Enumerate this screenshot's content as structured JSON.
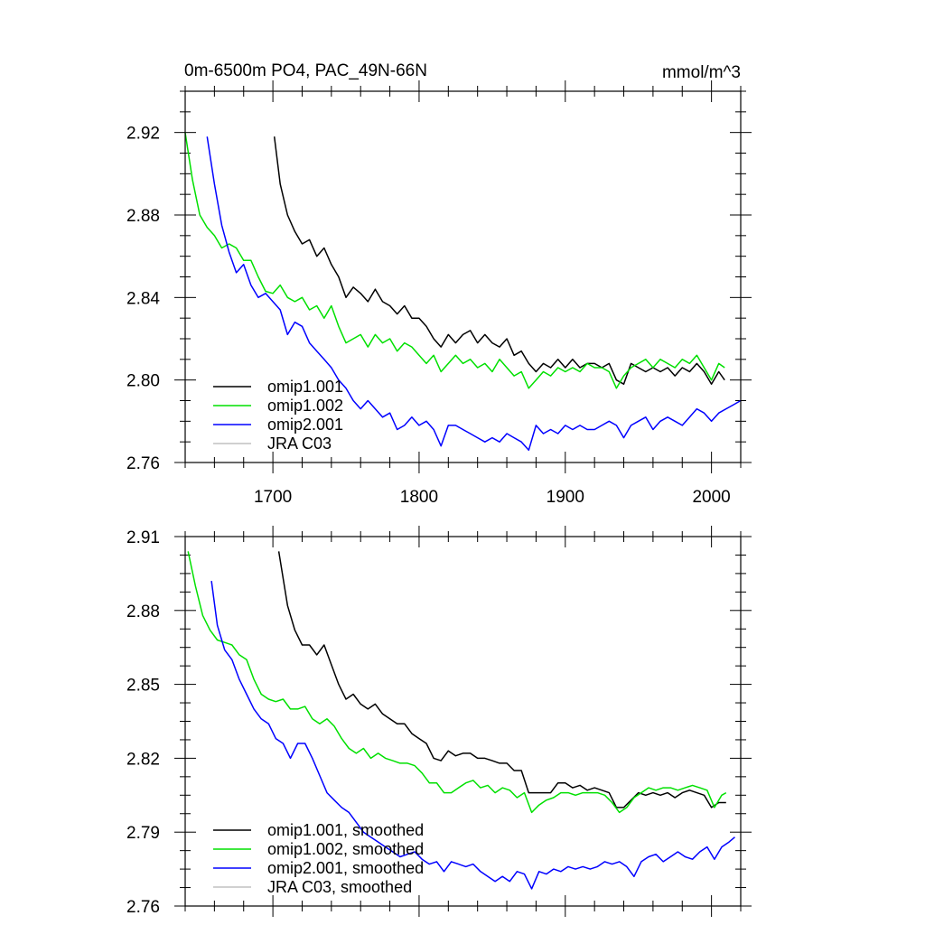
{
  "chart_data": [
    {
      "type": "line",
      "title": "0m-6500m PO4, PAC_49N-66N",
      "units": "mmol/m^3",
      "xlim": [
        1640,
        2020
      ],
      "ylim": [
        2.76,
        2.94
      ],
      "x_ticks": [
        1700,
        1800,
        1900,
        2000
      ],
      "y_ticks": [
        2.76,
        2.8,
        2.84,
        2.88,
        2.92
      ],
      "y_tick_labels": [
        "2.76",
        "2.80",
        "2.84",
        "2.88",
        "2.92"
      ],
      "legend_position": "bottom-left",
      "series": [
        {
          "name": "omip1.001",
          "color": "#000000",
          "x": [
            1701,
            1705,
            1710,
            1715,
            1720,
            1725,
            1730,
            1735,
            1740,
            1745,
            1750,
            1755,
            1760,
            1765,
            1770,
            1775,
            1780,
            1785,
            1790,
            1795,
            1800,
            1805,
            1810,
            1815,
            1820,
            1825,
            1830,
            1835,
            1840,
            1845,
            1850,
            1855,
            1860,
            1865,
            1870,
            1875,
            1880,
            1885,
            1890,
            1895,
            1900,
            1905,
            1910,
            1915,
            1920,
            1925,
            1930,
            1935,
            1940,
            1945,
            1950,
            1955,
            1960,
            1965,
            1970,
            1975,
            1980,
            1985,
            1990,
            1995,
            2000,
            2005,
            2009
          ],
          "y": [
            2.918,
            2.895,
            2.88,
            2.872,
            2.866,
            2.868,
            2.86,
            2.864,
            2.856,
            2.85,
            2.84,
            2.845,
            2.842,
            2.838,
            2.844,
            2.838,
            2.836,
            2.832,
            2.836,
            2.83,
            2.83,
            2.826,
            2.82,
            2.816,
            2.822,
            2.818,
            2.822,
            2.824,
            2.818,
            2.822,
            2.818,
            2.816,
            2.82,
            2.812,
            2.814,
            2.808,
            2.804,
            2.808,
            2.806,
            2.81,
            2.806,
            2.81,
            2.806,
            2.808,
            2.808,
            2.806,
            2.808,
            2.8,
            2.798,
            2.808,
            2.806,
            2.804,
            2.806,
            2.804,
            2.806,
            2.802,
            2.806,
            2.804,
            2.808,
            2.804,
            2.798,
            2.804,
            2.8
          ]
        },
        {
          "name": "omip1.002",
          "color": "#00e000",
          "x": [
            1640,
            1645,
            1650,
            1655,
            1660,
            1665,
            1670,
            1675,
            1680,
            1685,
            1690,
            1695,
            1700,
            1705,
            1710,
            1715,
            1720,
            1725,
            1730,
            1735,
            1740,
            1745,
            1750,
            1755,
            1760,
            1765,
            1770,
            1775,
            1780,
            1785,
            1790,
            1795,
            1800,
            1805,
            1810,
            1815,
            1820,
            1825,
            1830,
            1835,
            1840,
            1845,
            1850,
            1855,
            1860,
            1865,
            1870,
            1875,
            1880,
            1885,
            1890,
            1895,
            1900,
            1905,
            1910,
            1915,
            1920,
            1925,
            1930,
            1935,
            1940,
            1945,
            1950,
            1955,
            1960,
            1965,
            1970,
            1975,
            1980,
            1985,
            1990,
            1995,
            2000,
            2005,
            2009
          ],
          "y": [
            2.92,
            2.897,
            2.88,
            2.874,
            2.87,
            2.864,
            2.866,
            2.864,
            2.858,
            2.858,
            2.85,
            2.843,
            2.842,
            2.846,
            2.84,
            2.838,
            2.84,
            2.834,
            2.836,
            2.83,
            2.836,
            2.826,
            2.818,
            2.82,
            2.822,
            2.816,
            2.822,
            2.818,
            2.82,
            2.814,
            2.818,
            2.816,
            2.812,
            2.808,
            2.812,
            2.804,
            2.808,
            2.812,
            2.808,
            2.81,
            2.806,
            2.808,
            2.804,
            2.81,
            2.806,
            2.802,
            2.804,
            2.796,
            2.8,
            2.804,
            2.802,
            2.806,
            2.804,
            2.806,
            2.804,
            2.808,
            2.806,
            2.806,
            2.804,
            2.796,
            2.802,
            2.806,
            2.808,
            2.81,
            2.806,
            2.81,
            2.808,
            2.806,
            2.81,
            2.808,
            2.812,
            2.806,
            2.8,
            2.808,
            2.806
          ]
        },
        {
          "name": "omip2.001",
          "color": "#0000ff",
          "x": [
            1655,
            1660,
            1665,
            1670,
            1675,
            1680,
            1685,
            1690,
            1695,
            1700,
            1705,
            1710,
            1715,
            1720,
            1725,
            1730,
            1735,
            1740,
            1745,
            1750,
            1755,
            1760,
            1765,
            1770,
            1775,
            1780,
            1785,
            1790,
            1795,
            1800,
            1805,
            1810,
            1815,
            1820,
            1825,
            1830,
            1835,
            1840,
            1845,
            1850,
            1855,
            1860,
            1865,
            1870,
            1875,
            1880,
            1885,
            1890,
            1895,
            1900,
            1905,
            1910,
            1915,
            1920,
            1925,
            1930,
            1935,
            1940,
            1945,
            1950,
            1955,
            1960,
            1965,
            1970,
            1975,
            1980,
            1985,
            1990,
            1995,
            2000,
            2005,
            2010,
            2015,
            2020
          ],
          "y": [
            2.918,
            2.895,
            2.875,
            2.862,
            2.852,
            2.856,
            2.846,
            2.84,
            2.842,
            2.838,
            2.834,
            2.822,
            2.828,
            2.826,
            2.818,
            2.814,
            2.81,
            2.806,
            2.8,
            2.796,
            2.79,
            2.786,
            2.79,
            2.786,
            2.782,
            2.784,
            2.776,
            2.778,
            2.782,
            2.778,
            2.78,
            2.776,
            2.768,
            2.778,
            2.778,
            2.776,
            2.774,
            2.772,
            2.77,
            2.772,
            2.77,
            2.774,
            2.772,
            2.77,
            2.766,
            2.778,
            2.774,
            2.776,
            2.774,
            2.778,
            2.776,
            2.778,
            2.776,
            2.776,
            2.778,
            2.78,
            2.778,
            2.772,
            2.778,
            2.78,
            2.782,
            2.776,
            2.78,
            2.782,
            2.78,
            2.778,
            2.782,
            2.786,
            2.784,
            2.78,
            2.784,
            2.786,
            2.788,
            2.79
          ]
        },
        {
          "name": "JRA C03",
          "color": "#c0c0c0",
          "x": [],
          "y": []
        }
      ]
    },
    {
      "type": "line",
      "title": "",
      "xlim": [
        1640,
        2020
      ],
      "ylim": [
        2.76,
        2.91
      ],
      "x_ticks": [
        1700,
        1800,
        1900,
        2000
      ],
      "y_ticks": [
        2.76,
        2.79,
        2.82,
        2.85,
        2.88,
        2.91
      ],
      "y_tick_labels": [
        "2.76",
        "2.79",
        "2.82",
        "2.85",
        "2.88",
        "2.91"
      ],
      "legend_position": "bottom-left",
      "series": [
        {
          "name": "omip1.001, smoothed",
          "color": "#000000",
          "x": [
            1704,
            1710,
            1715,
            1720,
            1725,
            1730,
            1735,
            1740,
            1745,
            1750,
            1755,
            1760,
            1765,
            1770,
            1775,
            1780,
            1785,
            1790,
            1795,
            1800,
            1805,
            1810,
            1815,
            1820,
            1825,
            1830,
            1835,
            1840,
            1845,
            1850,
            1855,
            1860,
            1865,
            1870,
            1875,
            1880,
            1885,
            1890,
            1895,
            1900,
            1905,
            1910,
            1915,
            1920,
            1925,
            1930,
            1935,
            1940,
            1945,
            1950,
            1955,
            1960,
            1965,
            1970,
            1975,
            1980,
            1985,
            1990,
            1995,
            2000,
            2005,
            2010
          ],
          "y": [
            2.904,
            2.882,
            2.872,
            2.866,
            2.866,
            2.862,
            2.866,
            2.858,
            2.85,
            2.844,
            2.846,
            2.842,
            2.84,
            2.842,
            2.838,
            2.836,
            2.834,
            2.834,
            2.83,
            2.828,
            2.826,
            2.82,
            2.819,
            2.823,
            2.821,
            2.822,
            2.822,
            2.82,
            2.82,
            2.819,
            2.818,
            2.818,
            2.815,
            2.815,
            2.806,
            2.806,
            2.806,
            2.806,
            2.81,
            2.81,
            2.808,
            2.809,
            2.807,
            2.808,
            2.807,
            2.806,
            2.8,
            2.8,
            2.803,
            2.806,
            2.805,
            2.806,
            2.805,
            2.806,
            2.804,
            2.806,
            2.807,
            2.806,
            2.805,
            2.8,
            2.802,
            2.802
          ]
        },
        {
          "name": "omip1.002, smoothed",
          "color": "#00e000",
          "x": [
            1642,
            1647,
            1652,
            1657,
            1662,
            1667,
            1672,
            1677,
            1682,
            1687,
            1692,
            1697,
            1702,
            1707,
            1712,
            1717,
            1722,
            1727,
            1732,
            1737,
            1742,
            1747,
            1752,
            1757,
            1762,
            1767,
            1772,
            1777,
            1782,
            1787,
            1792,
            1797,
            1802,
            1807,
            1812,
            1817,
            1822,
            1827,
            1832,
            1837,
            1842,
            1847,
            1852,
            1857,
            1862,
            1867,
            1872,
            1877,
            1882,
            1887,
            1892,
            1897,
            1902,
            1907,
            1912,
            1917,
            1922,
            1927,
            1932,
            1937,
            1942,
            1947,
            1952,
            1957,
            1962,
            1967,
            1972,
            1977,
            1982,
            1987,
            1992,
            1997,
            2002,
            2007,
            2010
          ],
          "y": [
            2.904,
            2.89,
            2.878,
            2.872,
            2.868,
            2.867,
            2.866,
            2.862,
            2.86,
            2.852,
            2.846,
            2.844,
            2.843,
            2.844,
            2.84,
            2.84,
            2.841,
            2.836,
            2.834,
            2.836,
            2.833,
            2.828,
            2.824,
            2.822,
            2.824,
            2.82,
            2.822,
            2.82,
            2.819,
            2.818,
            2.818,
            2.817,
            2.814,
            2.81,
            2.81,
            2.806,
            2.806,
            2.808,
            2.81,
            2.811,
            2.808,
            2.809,
            2.806,
            2.808,
            2.807,
            2.804,
            2.806,
            2.798,
            2.801,
            2.803,
            2.804,
            2.806,
            2.806,
            2.805,
            2.806,
            2.806,
            2.806,
            2.805,
            2.802,
            2.798,
            2.8,
            2.804,
            2.806,
            2.808,
            2.807,
            2.808,
            2.808,
            2.807,
            2.808,
            2.809,
            2.808,
            2.807,
            2.8,
            2.805,
            2.806
          ]
        },
        {
          "name": "omip2.001, smoothed",
          "color": "#0000ff",
          "x": [
            1658,
            1662,
            1667,
            1672,
            1677,
            1682,
            1687,
            1692,
            1697,
            1702,
            1707,
            1712,
            1717,
            1722,
            1727,
            1732,
            1737,
            1742,
            1747,
            1752,
            1757,
            1762,
            1767,
            1772,
            1777,
            1782,
            1787,
            1792,
            1797,
            1802,
            1807,
            1812,
            1817,
            1822,
            1827,
            1832,
            1837,
            1842,
            1847,
            1852,
            1857,
            1862,
            1867,
            1872,
            1877,
            1882,
            1887,
            1892,
            1897,
            1902,
            1907,
            1912,
            1917,
            1922,
            1927,
            1932,
            1937,
            1942,
            1947,
            1952,
            1957,
            1962,
            1967,
            1972,
            1977,
            1982,
            1987,
            1992,
            1997,
            2002,
            2007,
            2012,
            2016
          ],
          "y": [
            2.892,
            2.874,
            2.864,
            2.86,
            2.852,
            2.846,
            2.84,
            2.836,
            2.834,
            2.828,
            2.826,
            2.82,
            2.826,
            2.826,
            2.82,
            2.813,
            2.806,
            2.803,
            2.8,
            2.798,
            2.794,
            2.79,
            2.788,
            2.786,
            2.784,
            2.782,
            2.78,
            2.781,
            2.782,
            2.779,
            2.777,
            2.778,
            2.774,
            2.778,
            2.777,
            2.776,
            2.777,
            2.774,
            2.772,
            2.77,
            2.772,
            2.77,
            2.774,
            2.773,
            2.767,
            2.774,
            2.773,
            2.775,
            2.774,
            2.776,
            2.775,
            2.776,
            2.775,
            2.776,
            2.778,
            2.777,
            2.778,
            2.776,
            2.772,
            2.778,
            2.78,
            2.781,
            2.778,
            2.78,
            2.782,
            2.78,
            2.779,
            2.782,
            2.784,
            2.779,
            2.784,
            2.786,
            2.788
          ]
        },
        {
          "name": "JRA C03, smoothed",
          "color": "#c0c0c0",
          "x": [],
          "y": []
        }
      ]
    }
  ]
}
